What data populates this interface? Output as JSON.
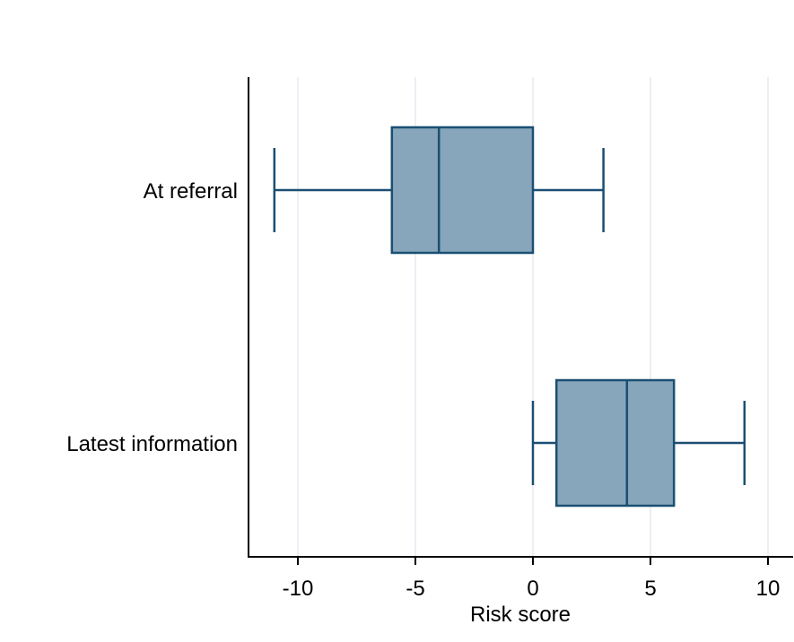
{
  "chart_data": {
    "type": "boxplot",
    "orientation": "horizontal",
    "xlabel": "Risk score",
    "xlim": [
      -12,
      11
    ],
    "xticks": [
      -10,
      -5,
      0,
      5,
      10
    ],
    "xtick_labels": [
      "-10",
      "-5",
      "0",
      "5",
      "10"
    ],
    "grid": "vertical",
    "legend": "none",
    "colors": {
      "box_fill": "#87a6bb",
      "box_stroke": "#1a4f72",
      "grid": "#e3ebf0",
      "axis": "#000000"
    },
    "categories": [
      "At referral",
      "Latest information"
    ],
    "boxes": [
      {
        "label": "At referral",
        "whisker_low": -11,
        "q1": -6,
        "median": -4,
        "q3": 0,
        "whisker_high": 3
      },
      {
        "label": "Latest information",
        "whisker_low": 0,
        "q1": 1,
        "median": 4,
        "q3": 6,
        "whisker_high": 9
      }
    ]
  }
}
